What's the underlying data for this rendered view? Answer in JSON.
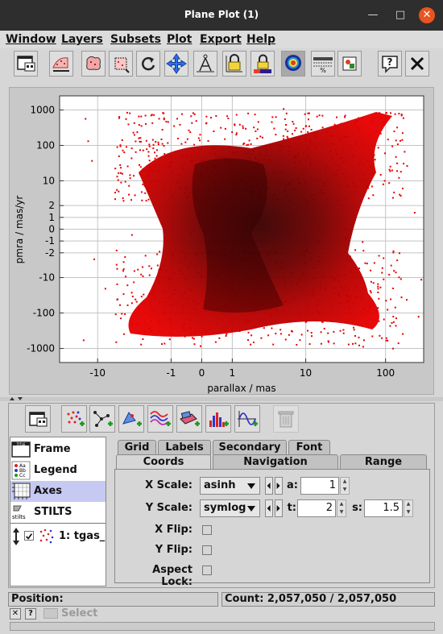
{
  "window": {
    "title": "Plane Plot (1)",
    "controls": [
      "minimize-icon",
      "maximize-icon",
      "close-icon"
    ]
  },
  "menubar": {
    "items": [
      "Window",
      "Layers",
      "Subsets",
      "Plot",
      "Export",
      "Help"
    ]
  },
  "toolbar": {
    "buttons": [
      "new-window-icon",
      "plot-subsets-icon",
      "blob-subset-icon",
      "box-subset-icon",
      "replot-icon",
      "navigation-icon",
      "axis-lock-icon",
      "aux-lock-icon",
      "aux-colour-lock-icon",
      "sketch-icon",
      "progress-icon",
      "export-icon",
      "help-icon",
      "close-window-icon"
    ]
  },
  "plot": {
    "xlabel": "parallax / mas",
    "ylabel": "pmra / mas/yr",
    "xticks": [
      "-10",
      "-1",
      "0",
      "1",
      "10",
      "100"
    ],
    "yticks": [
      "1000",
      "100",
      "10",
      "2",
      "1",
      "0",
      "-1",
      "-2",
      "-10",
      "-100",
      "-1000"
    ]
  },
  "chart_data": {
    "type": "scatter",
    "xlabel": "parallax / mas",
    "ylabel": "pmra / mas/yr",
    "xscale": "asinh",
    "yscale": "symlog",
    "xlim": [
      -30,
      300
    ],
    "ylim": [
      -2500,
      2500
    ],
    "grid": true,
    "xticks": [
      -10,
      -1,
      0,
      1,
      10,
      100
    ],
    "yticks": [
      1000,
      100,
      10,
      2,
      1,
      0,
      -1,
      -2,
      -10,
      -100,
      -1000
    ],
    "density": "point density shading: dark red in core, bright red at sparse edges"
  },
  "controls_toolbar": {
    "buttons": [
      "frame-window-icon",
      "add-position-layer-icon",
      "add-pair-layer-icon",
      "add-area-layer-icon",
      "add-multi-line-layer-icon",
      "add-shape-layer-icon",
      "add-histogram-layer-icon",
      "add-function-layer-icon",
      "delete-layer-icon"
    ]
  },
  "control_stack": {
    "items": [
      {
        "label": "Frame",
        "icon": "frame-icon"
      },
      {
        "label": "Legend",
        "icon": "legend-icon"
      },
      {
        "label": "Axes",
        "icon": "axes-icon"
      },
      {
        "label": "STILTS",
        "icon": "stilts-icon"
      },
      {
        "label": "1: tgas_",
        "icon": "scatter-layer-icon"
      }
    ],
    "selected": "Axes"
  },
  "tabs": {
    "row_back": [
      "Grid",
      "Labels",
      "Secondary",
      "Font"
    ],
    "row_front": [
      "Coords",
      "Navigation",
      "Range"
    ],
    "selected": "Coords"
  },
  "coords": {
    "x_scale_label": "X Scale:",
    "x_scale_value": "asinh",
    "a_label": "a:",
    "a_value": "1",
    "y_scale_label": "Y Scale:",
    "y_scale_value": "symlog",
    "t_label": "t:",
    "t_value": "2",
    "s_label": "s:",
    "s_value": "1.5",
    "x_flip_label": "X Flip:",
    "y_flip_label": "Y Flip:",
    "aspect_lock_label": "Aspect Lock:"
  },
  "status": {
    "position_label": "Position:",
    "count_label": "Count: 2,057,050 / 2,057,050"
  },
  "bottom": {
    "select_label": "Select"
  }
}
